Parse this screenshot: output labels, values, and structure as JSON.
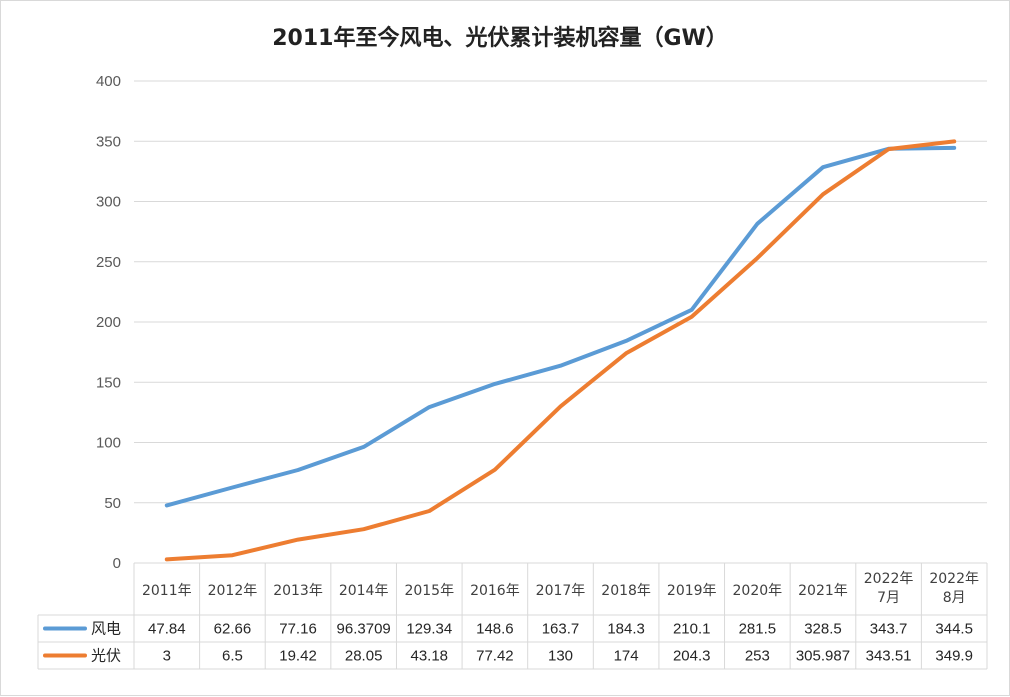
{
  "chart_data": {
    "type": "line",
    "title": "2011年至今风电、光伏累计装机容量（GW）",
    "categories": [
      [
        "2011年"
      ],
      [
        "2012年"
      ],
      [
        "2013年"
      ],
      [
        "2014年"
      ],
      [
        "2015年"
      ],
      [
        "2016年"
      ],
      [
        "2017年"
      ],
      [
        "2018年"
      ],
      [
        "2019年"
      ],
      [
        "2020年"
      ],
      [
        "2021年"
      ],
      [
        "2022年",
        "7月"
      ],
      [
        "2022年",
        "8月"
      ]
    ],
    "yticks": [
      "0",
      "50",
      "100",
      "150",
      "200",
      "250",
      "300",
      "350",
      "400"
    ],
    "ylim": [
      0,
      400
    ],
    "grid": true,
    "legend": "data-table",
    "series": [
      {
        "name": "风电",
        "color": "#5b9bd5",
        "values": [
          47.84,
          62.66,
          77.16,
          96.3709,
          129.34,
          148.6,
          163.7,
          184.3,
          210.1,
          281.5,
          328.5,
          343.7,
          344.5
        ],
        "labels": [
          "47.84",
          "62.66",
          "77.16",
          "96.3709",
          "129.34",
          "148.6",
          "163.7",
          "184.3",
          "210.1",
          "281.5",
          "328.5",
          "343.7",
          "344.5"
        ]
      },
      {
        "name": "光伏",
        "color": "#ed7d31",
        "values": [
          3,
          6.5,
          19.42,
          28.05,
          43.18,
          77.42,
          130,
          174,
          204.3,
          253,
          305.987,
          343.51,
          349.9
        ],
        "labels": [
          "3",
          "6.5",
          "19.42",
          "28.05",
          "43.18",
          "77.42",
          "130",
          "174",
          "204.3",
          "253",
          "305.987",
          "343.51",
          "349.9"
        ]
      }
    ]
  }
}
